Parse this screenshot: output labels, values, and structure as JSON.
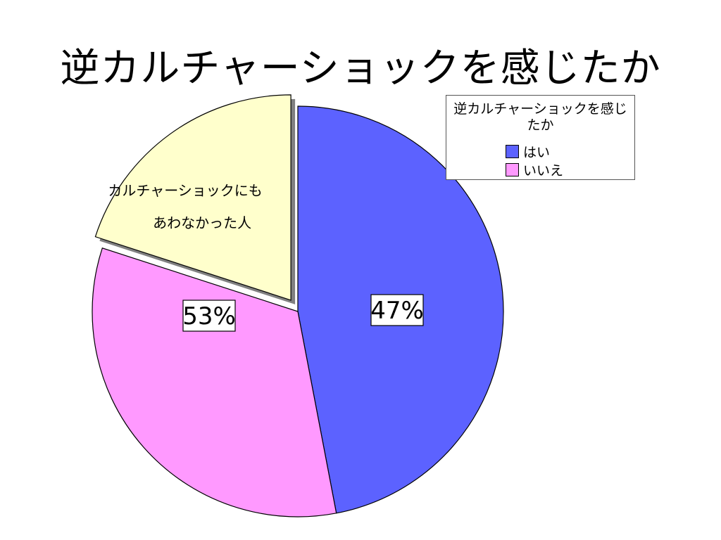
{
  "title": "逆カルチャーショックを感じたか",
  "chart_data": {
    "type": "pie",
    "title": "逆カルチャーショックを感じたか",
    "legend_title": "逆カルチャーショックを感じたか",
    "legend_placement": "top-right",
    "slices": [
      {
        "name": "はい",
        "value": 47,
        "label": "47%",
        "color": "#5c62ff",
        "exploded": false
      },
      {
        "name": "いいえ",
        "value": 53,
        "label": "53%",
        "color": "#ff99ff",
        "exploded": false
      }
    ],
    "legend": [
      {
        "name": "はい",
        "color": "#5c62ff"
      },
      {
        "name": "いいえ",
        "color": "#ff99ff"
      }
    ],
    "annotation": {
      "text_line1": "カルチャーショックにも",
      "text_line2": "あわなかった人",
      "color": "#ffffcc",
      "share_percent": 20
    }
  }
}
